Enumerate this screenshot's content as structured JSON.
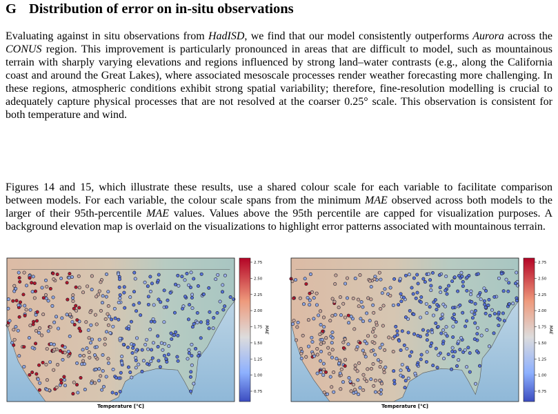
{
  "section": {
    "number": "G",
    "title": "Distribution of error on in-situ observations"
  },
  "paragraphs": [
    [
      {
        "text": "Evaluating against in situ observations from "
      },
      {
        "text": "HadISD",
        "italic": true
      },
      {
        "text": ", we find that our model consistently outperforms "
      },
      {
        "text": "Aurora",
        "italic": true
      },
      {
        "text": " across the "
      },
      {
        "text": "CONUS",
        "italic": true
      },
      {
        "text": " region.  This improvement is particularly pronounced in areas that are difficult to model, such as mountainous terrain with sharply varying elevations and regions influenced by strong land–water contrasts (e.g., along the California coast and around the Great Lakes), where associated mesoscale processes render weather forecasting more challenging.  In these regions, atmospheric conditions exhibit strong spatial variability; therefore, fine-resolution modelling is crucial to adequately capture physical processes that are not resolved at the coarser "
      },
      {
        "text": "0.25°"
      },
      {
        "text": " scale. This observation is consistent for both temperature and wind."
      }
    ],
    [
      {
        "text": "Figures 14 and 15, which illustrate these results, use a shared colour scale for each variable to facilitate comparison between models. For each variable, the colour scale spans from the minimum "
      },
      {
        "text": "MAE",
        "italic": true
      },
      {
        "text": " observed across both models to the larger of their 95th-percentile "
      },
      {
        "text": "MAE",
        "italic": true
      },
      {
        "text": " values. Values above the 95th percentile are capped for visualization purposes. A background elevation map is overlaid on the visualizations to highlight error patterns associated with mountainous terrain."
      }
    ]
  ],
  "figures": [
    {
      "colorbar_ticks": [
        "2.75",
        "2.50",
        "2.25",
        "2.00",
        "1.75",
        "1.50",
        "1.25",
        "1.00",
        "0.75"
      ],
      "colorbar_label": "MAE",
      "caption": "Temperature [°C]"
    },
    {
      "colorbar_ticks": [
        "2.75",
        "2.50",
        "2.25",
        "2.00",
        "1.75",
        "1.50",
        "1.25",
        "1.00",
        "0.75"
      ],
      "colorbar_label": "MAE",
      "caption": "Temperature [°C]"
    }
  ]
}
